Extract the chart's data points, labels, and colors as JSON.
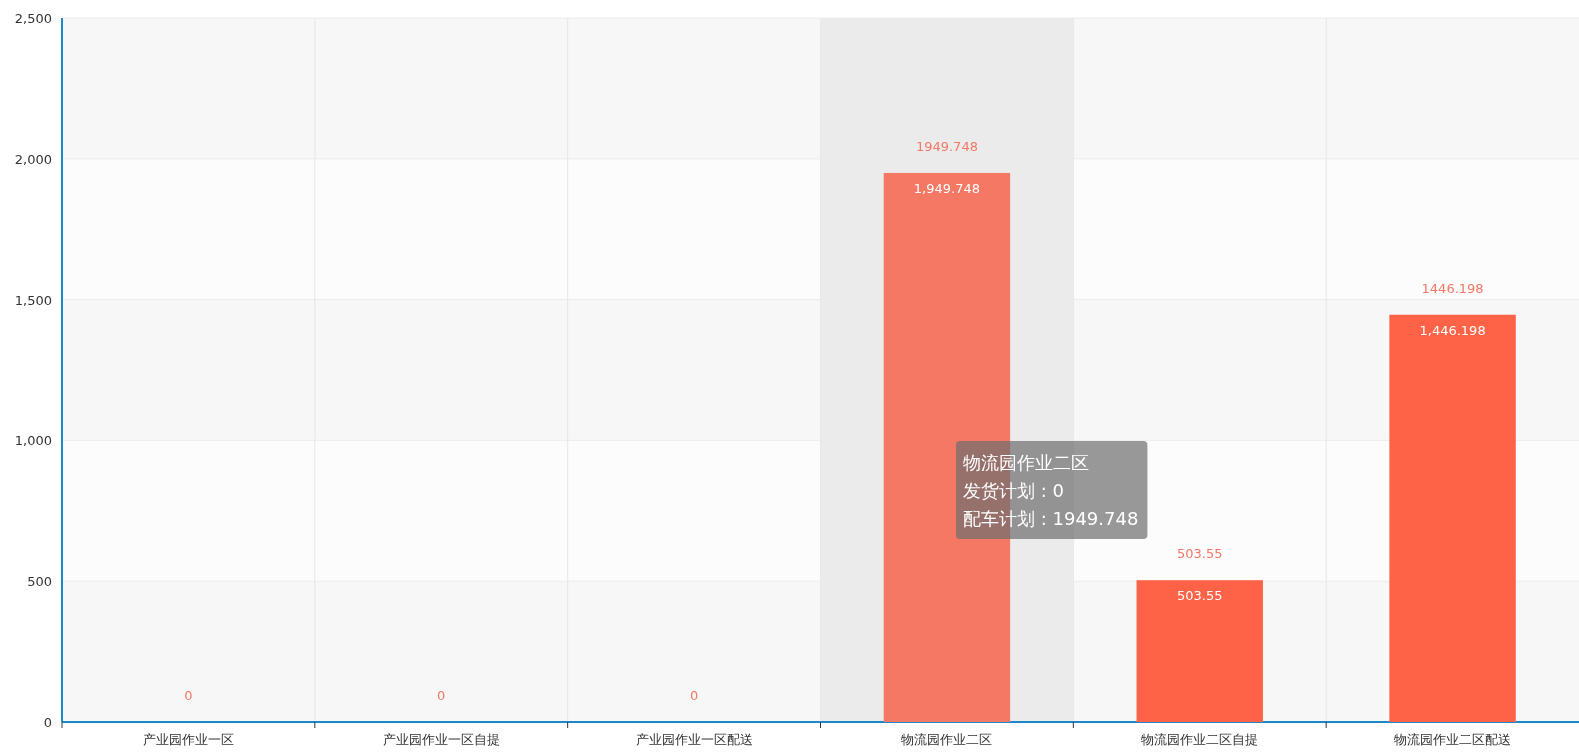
{
  "chart_data": {
    "type": "bar",
    "categories": [
      "产业园作业一区",
      "产业园作业一区自提",
      "产业园作业一区配送",
      "物流园作业二区",
      "物流园作业二区自提",
      "物流园作业二区配送"
    ],
    "values": [
      0,
      0,
      0,
      1949.748,
      503.55,
      1446.198
    ],
    "colors": [
      "#ff6347",
      "#ff6347",
      "#ff6347",
      "#f47864",
      "#ff6347",
      "#ff6347"
    ],
    "value_labels": [
      null,
      null,
      null,
      "1,949.748",
      "503.55",
      "1,446.198"
    ],
    "totals": [
      "0",
      "0",
      "0",
      "1949.748",
      "503.55",
      "1446.198"
    ],
    "ylim": [
      0,
      2500
    ],
    "yticks": [
      {
        "value": 0,
        "label": "0"
      },
      {
        "value": 500,
        "label": "500"
      },
      {
        "value": 1000,
        "label": "1,000"
      },
      {
        "value": 1500,
        "label": "1,500"
      },
      {
        "value": 2000,
        "label": "2,000"
      },
      {
        "value": 2500,
        "label": "2,500"
      }
    ],
    "grid": true,
    "bands": [
      {
        "axis": "x",
        "from": "物流园作业二区",
        "to": "物流园作业二区",
        "color": "#ebebeb"
      }
    ],
    "annotations": [
      "物流园作业二区",
      "发货计划 : 0",
      "配车计划 : 1949.748"
    ]
  }
}
